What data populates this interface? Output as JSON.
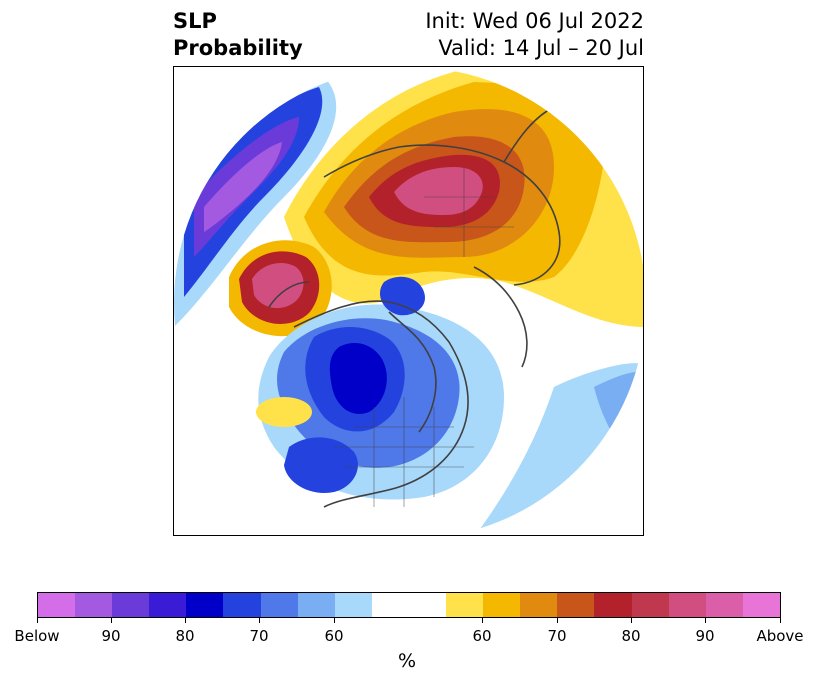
{
  "title": {
    "variable": "SLP",
    "product": "Probability",
    "init": "Init: Wed 06 Jul 2022",
    "valid": "Valid: 14 Jul – 20 Jul"
  },
  "colors": {
    "below": [
      "#d36ee8",
      "#a45ae0",
      "#6a3bd9",
      "#3a1bd6",
      "#0000c8",
      "#2443de",
      "#4f78e8",
      "#7aaef2",
      "#a8d8fa"
    ],
    "neutral": "#ffffff",
    "above": [
      "#ffe14a",
      "#f4b800",
      "#e08a10",
      "#c8561a",
      "#b3222a",
      "#c0384e",
      "#d04e80",
      "#db5ea9",
      "#e874d7"
    ],
    "coastline": "#404040"
  },
  "colorbar": {
    "tick_labels": [
      "Below",
      "90",
      "80",
      "70",
      "60",
      "60",
      "70",
      "80",
      "90",
      "Above"
    ],
    "label": "%"
  }
}
